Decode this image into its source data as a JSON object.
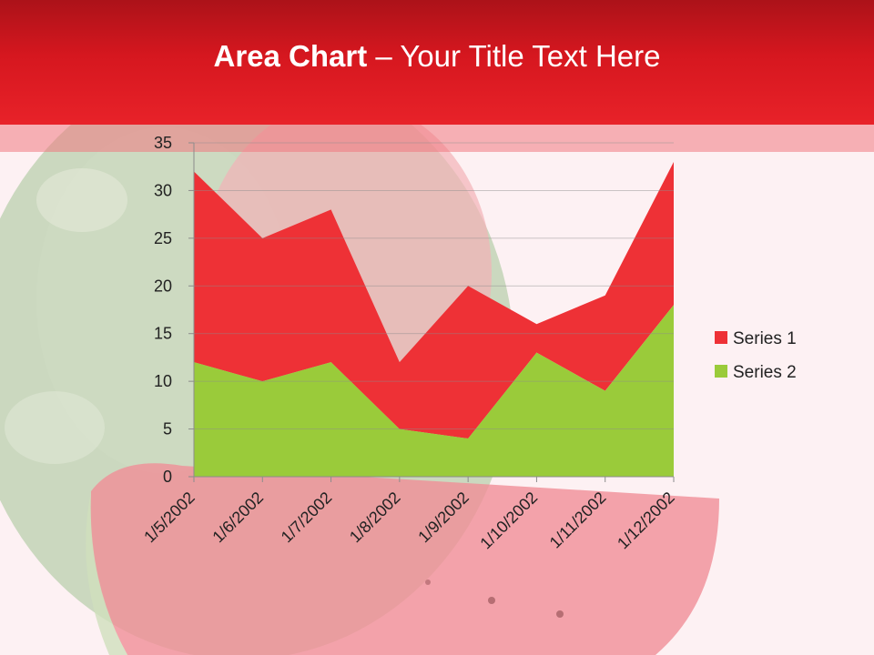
{
  "slide": {
    "title_bold": "Area Chart",
    "title_rest": " – Your Title Text Here"
  },
  "colors": {
    "header": "#e82229",
    "series1": "#ee3136",
    "series2": "#9acb3a",
    "background": "#fdf1f3"
  },
  "background_image": "watermelon-photo",
  "chart_data": {
    "type": "area",
    "stacked": true,
    "x": [
      "1/5/2002",
      "1/6/2002",
      "1/7/2002",
      "1/8/2002",
      "1/9/2002",
      "1/10/2002",
      "1/11/2002",
      "1/12/2002"
    ],
    "ylim": [
      0,
      35
    ],
    "yticks": [
      0,
      5,
      10,
      15,
      20,
      25,
      30,
      35
    ],
    "grid": true,
    "legend_position": "right",
    "series": [
      {
        "name": "Series 1",
        "color": "#ee3136",
        "values": [
          20,
          15,
          16,
          7,
          16,
          3,
          10,
          15
        ]
      },
      {
        "name": "Series 2",
        "color": "#9acb3a",
        "values": [
          12,
          10,
          12,
          5,
          4,
          13,
          9,
          18
        ]
      }
    ]
  }
}
